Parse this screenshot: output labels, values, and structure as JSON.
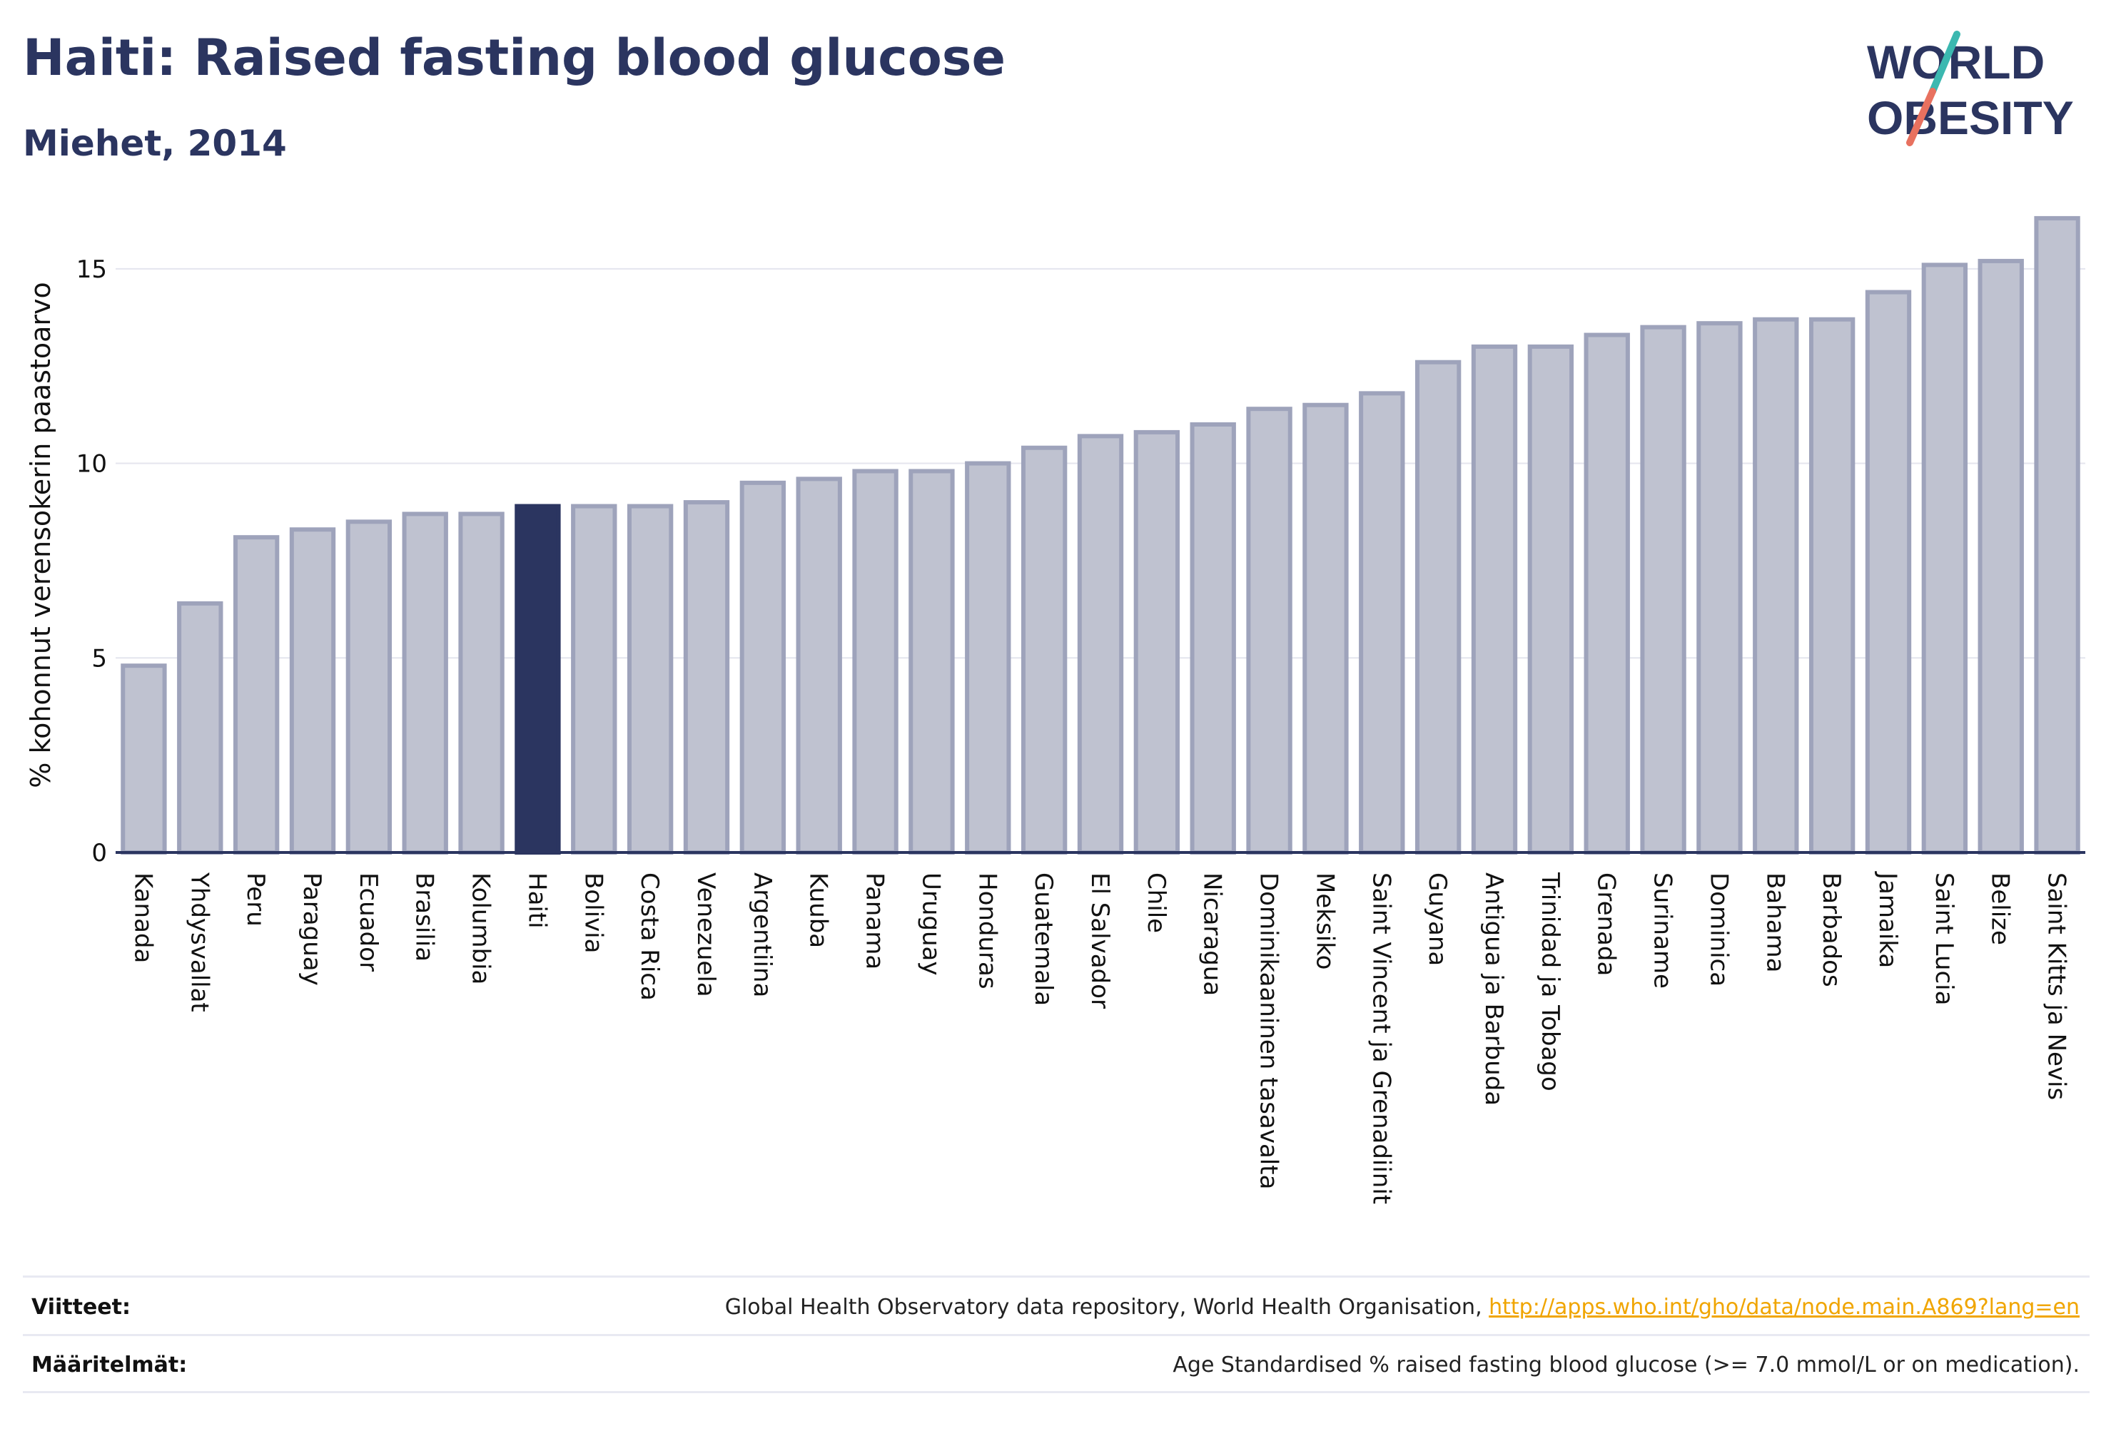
{
  "header": {
    "title": "Haiti: Raised fasting blood glucose",
    "subtitle": "Miehet, 2014"
  },
  "logo": {
    "line1": "WORLD",
    "line2": "OBESITY"
  },
  "colors": {
    "bar": "#bfc2d0",
    "bar_stroke": "#9ea3bb",
    "highlight": "#2b3560",
    "axis": "#2b3560",
    "grid": "#e4e5ee",
    "logo_teal": "#3bb8b0",
    "logo_coral": "#e8715f"
  },
  "chart_data": {
    "type": "bar",
    "ylabel": "% kohonnut verensokerin paastoarvo",
    "ylim": [
      0,
      16.5
    ],
    "yticks": [
      0,
      5,
      10,
      15
    ],
    "grid": true,
    "highlight": "Haiti",
    "categories": [
      "Kanada",
      "Yhdysvallat",
      "Peru",
      "Paraguay",
      "Ecuador",
      "Brasilia",
      "Kolumbia",
      "Haiti",
      "Bolivia",
      "Costa Rica",
      "Venezuela",
      "Argentiina",
      "Kuuba",
      "Panama",
      "Uruguay",
      "Honduras",
      "Guatemala",
      "El Salvador",
      "Chile",
      "Nicaragua",
      "Dominikaaninen tasavalta",
      "Meksiko",
      "Saint Vincent ja Grenadiinit",
      "Guyana",
      "Antigua ja Barbuda",
      "Trinidad ja Tobago",
      "Grenada",
      "Suriname",
      "Dominica",
      "Bahama",
      "Barbados",
      "Jamaika",
      "Saint Lucia",
      "Belize",
      "Saint Kitts ja Nevis"
    ],
    "values": [
      4.8,
      6.4,
      8.1,
      8.3,
      8.5,
      8.7,
      8.7,
      8.9,
      8.9,
      8.9,
      9.0,
      9.5,
      9.6,
      9.8,
      9.8,
      10.0,
      10.4,
      10.7,
      10.8,
      11.0,
      11.4,
      11.5,
      11.8,
      12.6,
      13.0,
      13.0,
      13.3,
      13.5,
      13.6,
      13.7,
      13.7,
      14.4,
      15.1,
      15.2,
      16.3
    ]
  },
  "footer": {
    "references_label": "Viitteet:",
    "references_text": "Global Health Observatory data repository, World Health Organisation, ",
    "references_link": "http://apps.who.int/gho/data/node.main.A869?lang=en",
    "definitions_label": "Määritelmät:",
    "definitions_text": "Age Standardised % raised fasting blood glucose (>= 7.0 mmol/L or on medication)."
  }
}
